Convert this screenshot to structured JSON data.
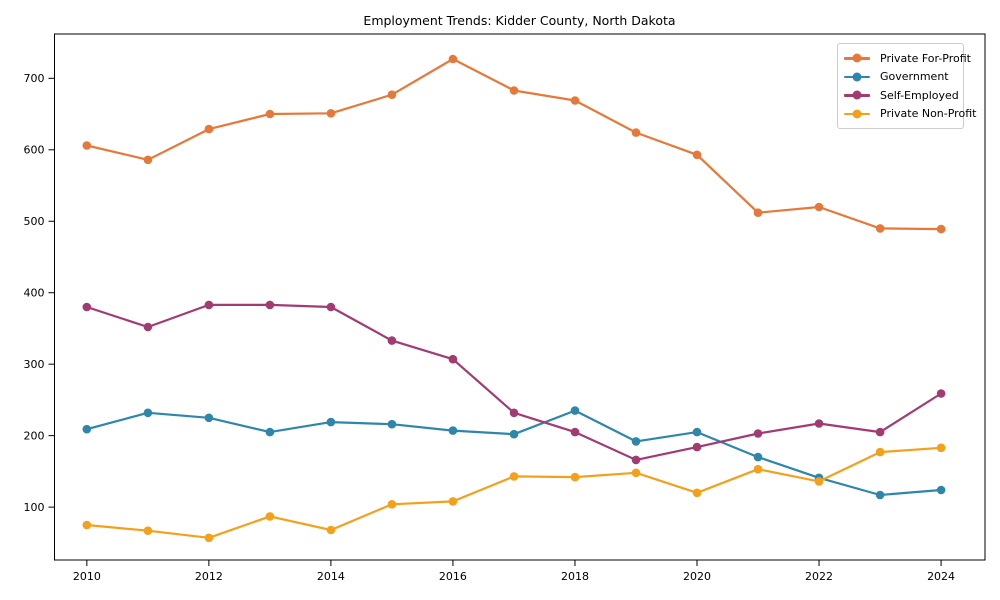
{
  "figure": {
    "background": "#ffffff",
    "axis_color": "#000000"
  },
  "chart_data": {
    "type": "line",
    "title": "Employment Trends: Kidder County, North Dakota",
    "x": [
      2010,
      2011,
      2012,
      2013,
      2014,
      2015,
      2016,
      2017,
      2018,
      2019,
      2020,
      2021,
      2022,
      2023,
      2024
    ],
    "xticks": [
      2010,
      2012,
      2014,
      2016,
      2018,
      2020,
      2022,
      2024
    ],
    "yticks": [
      100,
      200,
      300,
      400,
      500,
      600,
      700
    ],
    "xlim": [
      2009.47,
      2024.72
    ],
    "ylim": [
      26,
      762
    ],
    "grid": false,
    "legend_position": "upper right",
    "marker": "circle",
    "series": [
      {
        "name": "Private For-Profit",
        "color": "#E6793A",
        "values": [
          606,
          586,
          629,
          650,
          651,
          677,
          727,
          683,
          669,
          624,
          593,
          512,
          520,
          490,
          489
        ]
      },
      {
        "name": "Government",
        "color": "#2E86AB",
        "values": [
          209,
          232,
          225,
          205,
          219,
          216,
          207,
          202,
          235,
          192,
          205,
          170,
          141,
          117,
          124
        ]
      },
      {
        "name": "Self-Employed",
        "color": "#A23B72",
        "values": [
          380,
          352,
          383,
          383,
          380,
          333,
          307,
          232,
          205,
          166,
          184,
          203,
          217,
          205,
          259
        ]
      },
      {
        "name": "Private Non-Profit",
        "color": "#F5A01B",
        "values": [
          75,
          67,
          57,
          87,
          68,
          104,
          108,
          143,
          142,
          148,
          120,
          153,
          136,
          177,
          183
        ]
      }
    ]
  }
}
